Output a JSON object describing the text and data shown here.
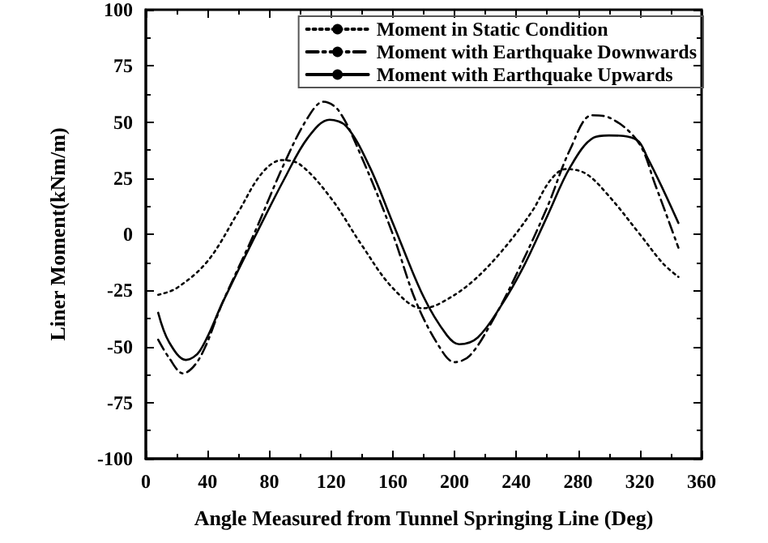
{
  "chart_data": {
    "type": "line",
    "xlabel": "Angle Measured from Tunnel Springing Line (Deg)",
    "ylabel": "Liner Moment(kNm/m)",
    "xlim": [
      0,
      360
    ],
    "xticks": [
      0,
      40,
      80,
      120,
      160,
      200,
      240,
      280,
      320,
      360
    ],
    "ylim": [
      -100,
      100
    ],
    "yticks": [
      -100,
      -75,
      -50,
      -25,
      0,
      25,
      50,
      75,
      100
    ],
    "grid": false,
    "legend": "top right",
    "marker": "none",
    "series": [
      {
        "name": "Moment in Static Condition",
        "color": "#000000",
        "line_style": "dotted",
        "x": [
          8,
          20,
          40,
          60,
          75,
          88,
          100,
          120,
          140,
          160,
          179,
          190,
          210,
          230,
          250,
          262,
          272,
          285,
          300,
          320,
          335,
          345
        ],
        "values": [
          -27,
          -24,
          -12,
          10,
          27,
          33,
          31,
          16,
          -5,
          -24,
          -33,
          -31,
          -22,
          -8,
          10,
          24,
          29,
          27,
          17,
          0,
          -13,
          -19
        ]
      },
      {
        "name": "Moment with Earthquake Downwards",
        "color": "#000000",
        "line_style": "dashed",
        "x": [
          8,
          15,
          24,
          35,
          50,
          70,
          90,
          105,
          115,
          125,
          140,
          160,
          175,
          190,
          200,
          210,
          225,
          240,
          260,
          275,
          289,
          300,
          319,
          330,
          345
        ],
        "values": [
          -47,
          -55,
          -62,
          -55,
          -30,
          0,
          32,
          52,
          59,
          55,
          34,
          0,
          -30,
          -50,
          -57,
          -54,
          -38,
          -18,
          12,
          38,
          53,
          52,
          41,
          22,
          -6
        ]
      },
      {
        "name": "Moment with Earthquake Upwards",
        "color": "#000000",
        "line_style": "solid",
        "x": [
          8,
          15,
          26,
          35,
          50,
          70,
          90,
          105,
          119,
          130,
          145,
          160,
          180,
          195,
          203,
          215,
          230,
          245,
          260,
          275,
          290,
          300,
          318,
          325,
          335,
          345
        ],
        "values": [
          -35,
          -48,
          -56,
          -52,
          -30,
          -2,
          25,
          43,
          51,
          48,
          30,
          5,
          -28,
          -45,
          -49,
          -46,
          -32,
          -14,
          8,
          30,
          43,
          44,
          42,
          34,
          20,
          5
        ]
      }
    ]
  }
}
